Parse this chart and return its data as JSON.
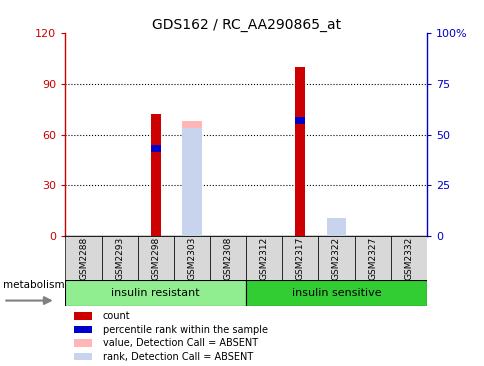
{
  "title": "GDS162 / RC_AA290865_at",
  "samples": [
    "GSM2288",
    "GSM2293",
    "GSM2298",
    "GSM2303",
    "GSM2308",
    "GSM2312",
    "GSM2317",
    "GSM2322",
    "GSM2327",
    "GSM2332"
  ],
  "count_values": [
    0,
    0,
    72,
    0,
    0,
    0,
    100,
    0,
    0,
    0
  ],
  "rank_values": [
    0,
    0,
    43,
    0,
    0,
    0,
    57,
    0,
    0,
    0
  ],
  "absent_value_values": [
    0,
    0,
    0,
    68,
    0,
    0,
    0,
    5,
    0,
    0
  ],
  "absent_rank_values": [
    0,
    0,
    0,
    53,
    0,
    0,
    0,
    9,
    0,
    0
  ],
  "ylim_left": [
    0,
    120
  ],
  "ylim_right": [
    0,
    100
  ],
  "yticks_left": [
    0,
    30,
    60,
    90,
    120
  ],
  "yticks_right": [
    0,
    25,
    50,
    75,
    100
  ],
  "ytick_labels_left": [
    "0",
    "30",
    "60",
    "90",
    "120"
  ],
  "ytick_labels_right": [
    "0",
    "25",
    "50",
    "75",
    "100%"
  ],
  "group1_label": "insulin resistant",
  "group2_label": "insulin sensitive",
  "metabolism_label": "metabolism",
  "legend_labels": [
    "count",
    "percentile rank within the sample",
    "value, Detection Call = ABSENT",
    "rank, Detection Call = ABSENT"
  ],
  "color_count": "#cc0000",
  "color_rank": "#0000cc",
  "color_absent_value": "#ffb6b6",
  "color_absent_rank": "#c8d4ee",
  "color_group1": "#90ee90",
  "color_group2": "#32cd32",
  "color_axis_left": "#cc0000",
  "color_axis_right": "#0000cc",
  "plot_bg": "#ffffff"
}
